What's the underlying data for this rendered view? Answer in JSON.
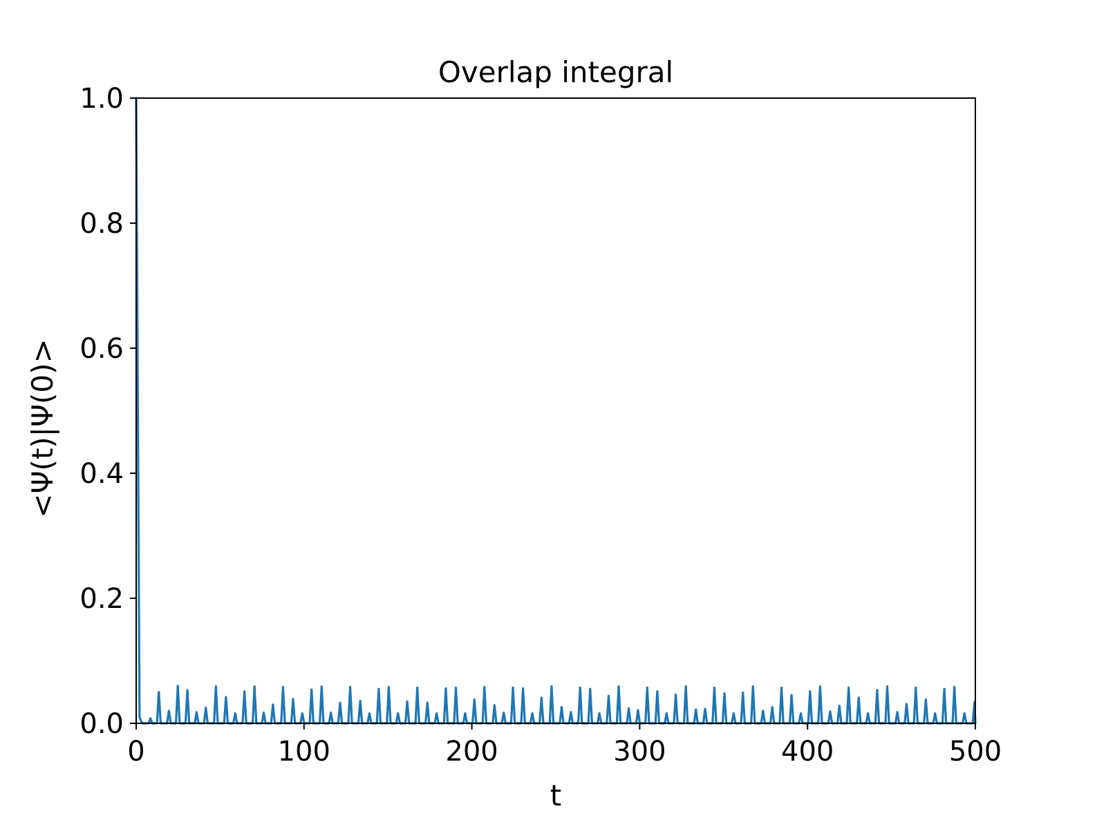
{
  "chart_data": {
    "type": "line",
    "title": "Overlap integral",
    "xlabel": "t",
    "ylabel": "<Ψ(t)|Ψ(0)>",
    "xlim": [
      0,
      500
    ],
    "ylim": [
      0,
      1.0
    ],
    "x_ticks": [
      "0",
      "100",
      "200",
      "300",
      "400",
      "500"
    ],
    "y_ticks": [
      "0.0",
      "0.2",
      "0.4",
      "0.6",
      "0.8",
      "1.0"
    ],
    "grid": false,
    "legend": "none",
    "series": [
      {
        "color": "#1f77b4",
        "baseline": 0.0,
        "x": [
          0,
          2
        ],
        "y": [
          1.0,
          0.01
        ],
        "peaks": [
          {
            "t": 8.5,
            "v": 0.008
          },
          {
            "t": 13.5,
            "v": 0.05
          },
          {
            "t": 19.5,
            "v": 0.02
          },
          {
            "t": 24.8,
            "v": 0.06
          },
          {
            "t": 30.5,
            "v": 0.053
          },
          {
            "t": 36,
            "v": 0.018
          },
          {
            "t": 41.5,
            "v": 0.025
          },
          {
            "t": 47.5,
            "v": 0.059
          },
          {
            "t": 53.5,
            "v": 0.042
          },
          {
            "t": 59,
            "v": 0.016
          },
          {
            "t": 64.5,
            "v": 0.051
          },
          {
            "t": 70.5,
            "v": 0.059
          },
          {
            "t": 76,
            "v": 0.017
          },
          {
            "t": 81.5,
            "v": 0.03
          },
          {
            "t": 87.5,
            "v": 0.058
          },
          {
            "t": 93.5,
            "v": 0.039
          },
          {
            "t": 99,
            "v": 0.016
          },
          {
            "t": 104.5,
            "v": 0.054
          },
          {
            "t": 110.5,
            "v": 0.059
          },
          {
            "t": 116,
            "v": 0.017
          },
          {
            "t": 121.5,
            "v": 0.033
          },
          {
            "t": 127.5,
            "v": 0.058
          },
          {
            "t": 133.5,
            "v": 0.036
          },
          {
            "t": 139,
            "v": 0.016
          },
          {
            "t": 144.5,
            "v": 0.055
          },
          {
            "t": 150.5,
            "v": 0.058
          },
          {
            "t": 156,
            "v": 0.016
          },
          {
            "t": 161.5,
            "v": 0.035
          },
          {
            "t": 167.5,
            "v": 0.057
          },
          {
            "t": 173.5,
            "v": 0.033
          },
          {
            "t": 179,
            "v": 0.016
          },
          {
            "t": 184.5,
            "v": 0.056
          },
          {
            "t": 190.5,
            "v": 0.057
          },
          {
            "t": 196,
            "v": 0.016
          },
          {
            "t": 201.5,
            "v": 0.038
          },
          {
            "t": 207.5,
            "v": 0.058
          },
          {
            "t": 213.5,
            "v": 0.029
          },
          {
            "t": 219,
            "v": 0.017
          },
          {
            "t": 224.5,
            "v": 0.057
          },
          {
            "t": 230.5,
            "v": 0.056
          },
          {
            "t": 236,
            "v": 0.016
          },
          {
            "t": 241.5,
            "v": 0.041
          },
          {
            "t": 247.5,
            "v": 0.059
          },
          {
            "t": 253.5,
            "v": 0.026
          },
          {
            "t": 259,
            "v": 0.018
          },
          {
            "t": 264.5,
            "v": 0.057
          },
          {
            "t": 270.5,
            "v": 0.055
          },
          {
            "t": 276,
            "v": 0.016
          },
          {
            "t": 281.5,
            "v": 0.044
          },
          {
            "t": 287.5,
            "v": 0.059
          },
          {
            "t": 293.5,
            "v": 0.024
          },
          {
            "t": 299,
            "v": 0.021
          },
          {
            "t": 304.5,
            "v": 0.057
          },
          {
            "t": 310.5,
            "v": 0.051
          },
          {
            "t": 316,
            "v": 0.016
          },
          {
            "t": 321.5,
            "v": 0.046
          },
          {
            "t": 327.5,
            "v": 0.059
          },
          {
            "t": 333.5,
            "v": 0.022
          },
          {
            "t": 339,
            "v": 0.023
          },
          {
            "t": 344.5,
            "v": 0.057
          },
          {
            "t": 350.5,
            "v": 0.048
          },
          {
            "t": 356,
            "v": 0.016
          },
          {
            "t": 361.5,
            "v": 0.049
          },
          {
            "t": 367.5,
            "v": 0.059
          },
          {
            "t": 373.5,
            "v": 0.02
          },
          {
            "t": 379,
            "v": 0.026
          },
          {
            "t": 384.5,
            "v": 0.057
          },
          {
            "t": 390.5,
            "v": 0.045
          },
          {
            "t": 396,
            "v": 0.016
          },
          {
            "t": 401.5,
            "v": 0.051
          },
          {
            "t": 407.5,
            "v": 0.059
          },
          {
            "t": 413.5,
            "v": 0.019
          },
          {
            "t": 419,
            "v": 0.028
          },
          {
            "t": 424.5,
            "v": 0.057
          },
          {
            "t": 430.5,
            "v": 0.041
          },
          {
            "t": 436,
            "v": 0.016
          },
          {
            "t": 441.5,
            "v": 0.053
          },
          {
            "t": 447.5,
            "v": 0.059
          },
          {
            "t": 453.5,
            "v": 0.018
          },
          {
            "t": 459,
            "v": 0.031
          },
          {
            "t": 464.5,
            "v": 0.057
          },
          {
            "t": 470.5,
            "v": 0.038
          },
          {
            "t": 476,
            "v": 0.016
          },
          {
            "t": 481.5,
            "v": 0.055
          },
          {
            "t": 487.5,
            "v": 0.058
          },
          {
            "t": 493.5,
            "v": 0.016
          },
          {
            "t": 499.5,
            "v": 0.034
          }
        ]
      }
    ]
  }
}
